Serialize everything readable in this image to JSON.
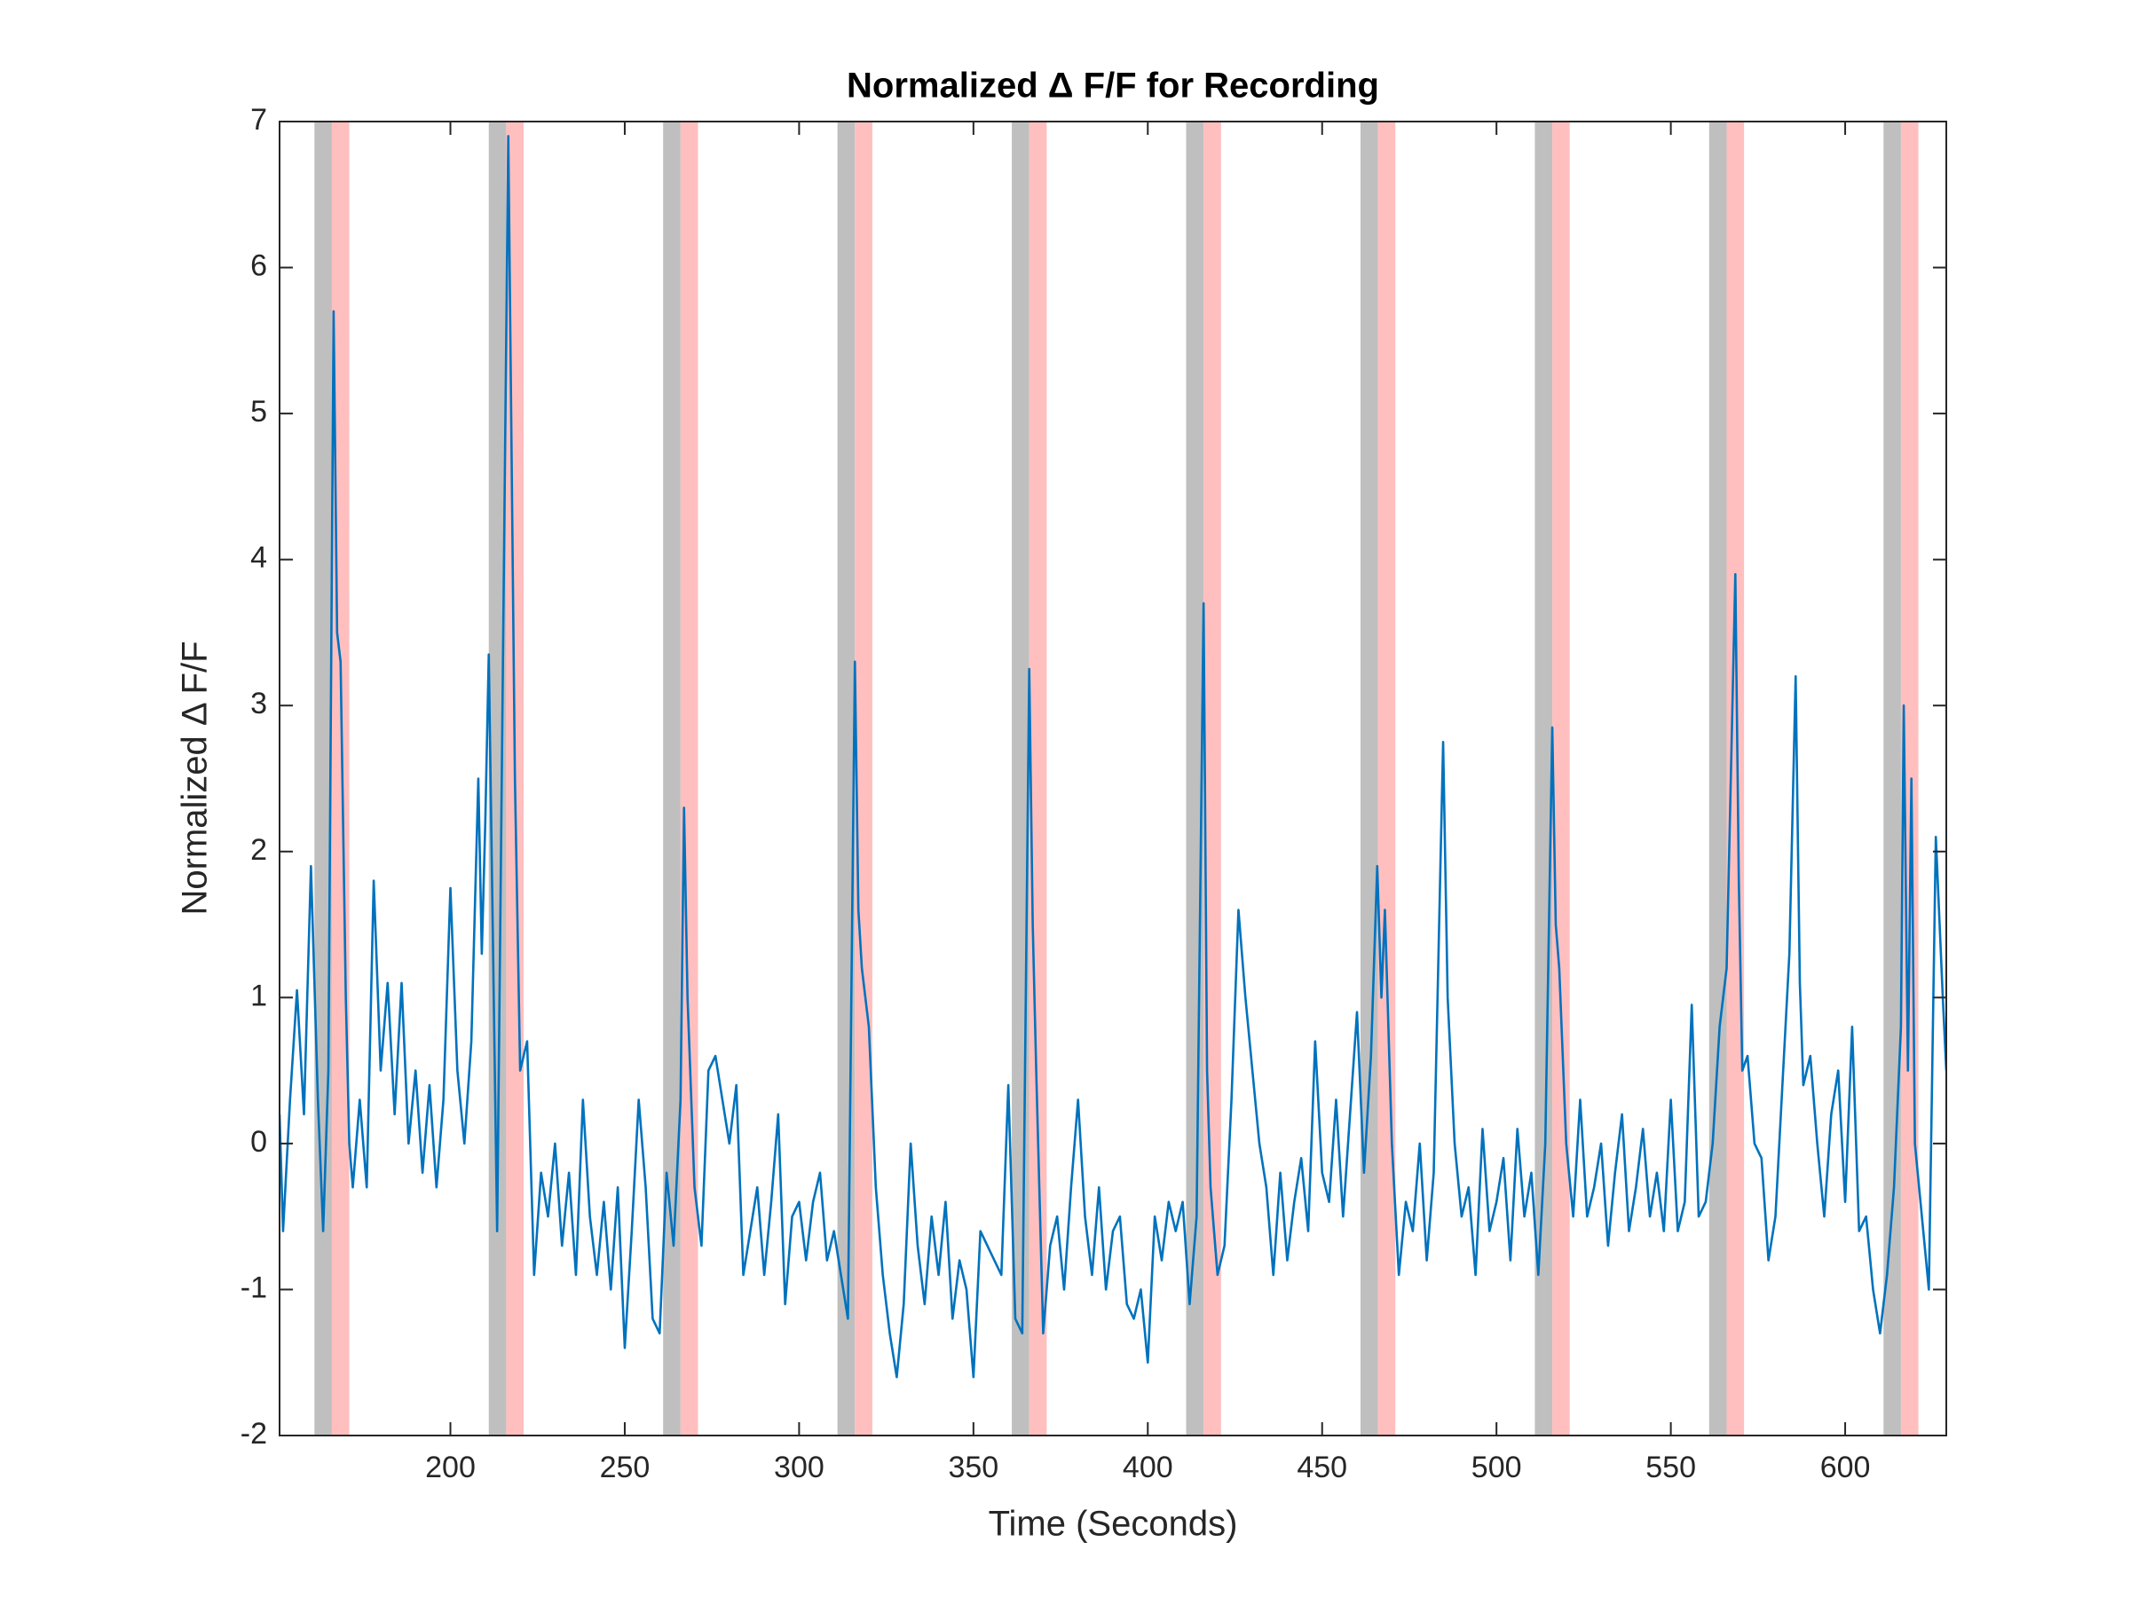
{
  "chart_data": {
    "type": "line",
    "title": "Normalized Δ F/F for Recording",
    "x_label": "Time (Seconds)",
    "y_label": "Normalized Δ F/F",
    "xlim": [
      151,
      629
    ],
    "ylim": [
      -2,
      7
    ],
    "xticks": [
      200,
      250,
      300,
      350,
      400,
      450,
      500,
      550,
      600
    ],
    "yticks": [
      -2,
      -1,
      0,
      1,
      2,
      3,
      4,
      5,
      6,
      7
    ],
    "grid": false,
    "regions": [
      {
        "color": "#bfbfbf",
        "x": [
          [
            161,
            166
          ],
          [
            211,
            216
          ],
          [
            261,
            266
          ],
          [
            311,
            316
          ],
          [
            361,
            366
          ],
          [
            411,
            416
          ],
          [
            461,
            466
          ],
          [
            511,
            516
          ],
          [
            561,
            566
          ],
          [
            611,
            616
          ]
        ]
      },
      {
        "color": "#ffbfbf",
        "x": [
          [
            166,
            171
          ],
          [
            216,
            221
          ],
          [
            266,
            271
          ],
          [
            316,
            321
          ],
          [
            366,
            371
          ],
          [
            416,
            421
          ],
          [
            466,
            471
          ],
          [
            516,
            521
          ],
          [
            566,
            571
          ],
          [
            616,
            621
          ]
        ]
      }
    ],
    "x": [
      151,
      152,
      154,
      156,
      158,
      160,
      162,
      163.5,
      165,
      166.5,
      167.5,
      168.5,
      170,
      171,
      172,
      174,
      176,
      178,
      180,
      182,
      184,
      186,
      188,
      190,
      192,
      194,
      196,
      198,
      200,
      202,
      204,
      206,
      208,
      209,
      210,
      211,
      213.4,
      216.6,
      218.5,
      220,
      222,
      224,
      226,
      228,
      230,
      232,
      234,
      236,
      238,
      240,
      242,
      244,
      246,
      248,
      250,
      252,
      254,
      256,
      258,
      260,
      262,
      264,
      266,
      267,
      268,
      270,
      272,
      274,
      276,
      278,
      280,
      282,
      284,
      286,
      288,
      290,
      292,
      294,
      296,
      298,
      300,
      302,
      304,
      306,
      308,
      310,
      312,
      314,
      316,
      317,
      318,
      320,
      322,
      324,
      326,
      328,
      330,
      332,
      334,
      336,
      338,
      340,
      342,
      344,
      346,
      348,
      350,
      352,
      354,
      356,
      358,
      360,
      362,
      364,
      366,
      367,
      368,
      370,
      372,
      374,
      376,
      378,
      380,
      382,
      384,
      386,
      388,
      390,
      392,
      394,
      396,
      398,
      400,
      402,
      404,
      406,
      408,
      410,
      412,
      414,
      416,
      417,
      418,
      420,
      422,
      424,
      426,
      428,
      430,
      432,
      434,
      436,
      438,
      440,
      442,
      444,
      446,
      448,
      450,
      452,
      454,
      456,
      458,
      460,
      462,
      464,
      465.8,
      467,
      468,
      469,
      470,
      472,
      474,
      476,
      478,
      480,
      482,
      484.7,
      486,
      488,
      490,
      492,
      494,
      496,
      498,
      500,
      502,
      504,
      506,
      508,
      510,
      512,
      514,
      516,
      517,
      518,
      520,
      522,
      524,
      526,
      528,
      530,
      532,
      534,
      536,
      538,
      540,
      542,
      544,
      546,
      548,
      550,
      552,
      554,
      556,
      558,
      560,
      562,
      564,
      566,
      568.5,
      569.5,
      570.5,
      572,
      574,
      576,
      578,
      580,
      582,
      584,
      585.8,
      587,
      588,
      590,
      592,
      594,
      596,
      598,
      600,
      602,
      604,
      606,
      608,
      610,
      612,
      614,
      616,
      616.8,
      618,
      619,
      620,
      622,
      624,
      626,
      628,
      629
    ],
    "series": [
      {
        "color": "#0072bd",
        "values": [
          0.2,
          -0.6,
          0.3,
          1.05,
          0.2,
          1.9,
          0.3,
          -0.6,
          0.5,
          5.7,
          3.5,
          3.3,
          1.0,
          0,
          -0.3,
          0.3,
          -0.3,
          1.8,
          0.5,
          1.1,
          0.2,
          1.1,
          0,
          0.5,
          -0.2,
          0.4,
          -0.3,
          0.3,
          1.75,
          0.5,
          0,
          0.7,
          2.5,
          1.3,
          2.2,
          3.35,
          -0.6,
          6.9,
          2.5,
          0.5,
          0.7,
          -0.9,
          -0.2,
          -0.5,
          0,
          -0.7,
          -0.2,
          -0.9,
          0.3,
          -0.5,
          -0.9,
          -0.4,
          -1.0,
          -0.3,
          -1.4,
          -0.6,
          0.3,
          -0.3,
          -1.2,
          -1.3,
          -0.2,
          -0.7,
          0.3,
          2.3,
          1.0,
          -0.3,
          -0.7,
          0.5,
          0.6,
          0.3,
          0,
          0.4,
          -0.9,
          -0.6,
          -0.3,
          -0.9,
          -0.4,
          0.2,
          -1.1,
          -0.5,
          -0.4,
          -0.8,
          -0.4,
          -0.2,
          -0.8,
          -0.6,
          -0.9,
          -1.2,
          3.3,
          1.6,
          1.2,
          0.8,
          -0.3,
          -0.9,
          -1.3,
          -1.6,
          -1.1,
          0,
          -0.7,
          -1.1,
          -0.5,
          -0.9,
          -0.4,
          -1.2,
          -0.8,
          -1.0,
          -1.6,
          -0.6,
          -0.7,
          -0.8,
          -0.9,
          0.4,
          -1.2,
          -1.3,
          3.25,
          1.5,
          0.5,
          -1.3,
          -0.7,
          -0.5,
          -1.0,
          -0.3,
          0.3,
          -0.5,
          -0.9,
          -0.3,
          -1.0,
          -0.6,
          -0.5,
          -1.1,
          -1.2,
          -1.0,
          -1.5,
          -0.5,
          -0.8,
          -0.4,
          -0.6,
          -0.4,
          -1.1,
          -0.5,
          3.7,
          0.5,
          -0.3,
          -0.9,
          -0.7,
          0.3,
          1.6,
          1.0,
          0.5,
          0,
          -0.3,
          -0.9,
          -0.2,
          -0.8,
          -0.4,
          -0.1,
          -0.6,
          0.7,
          -0.2,
          -0.4,
          0.3,
          -0.5,
          0.2,
          0.9,
          -0.2,
          0.6,
          1.9,
          1.0,
          1.6,
          0.8,
          0,
          -0.9,
          -0.4,
          -0.6,
          0,
          -0.8,
          -0.2,
          2.75,
          1.0,
          0,
          -0.5,
          -0.3,
          -0.9,
          0.1,
          -0.6,
          -0.4,
          -0.1,
          -0.8,
          0.1,
          -0.5,
          -0.2,
          -0.9,
          0,
          2.85,
          1.5,
          1.2,
          0,
          -0.5,
          0.3,
          -0.5,
          -0.3,
          0,
          -0.7,
          -0.2,
          0.2,
          -0.6,
          -0.3,
          0.1,
          -0.5,
          -0.2,
          -0.6,
          0.3,
          -0.6,
          -0.4,
          0.95,
          -0.5,
          -0.4,
          0,
          0.8,
          1.2,
          3.9,
          1.8,
          0.5,
          0.6,
          0,
          -0.1,
          -0.8,
          -0.5,
          0.4,
          1.3,
          3.2,
          1.1,
          0.4,
          0.6,
          0,
          -0.5,
          0.2,
          0.5,
          -0.4,
          0.8,
          -0.6,
          -0.5,
          -1.0,
          -1.3,
          -0.9,
          -0.3,
          0.8,
          3.0,
          0.5,
          2.5,
          0,
          -0.5,
          -1.0,
          2.1,
          1.0,
          0.5
        ]
      }
    ]
  }
}
